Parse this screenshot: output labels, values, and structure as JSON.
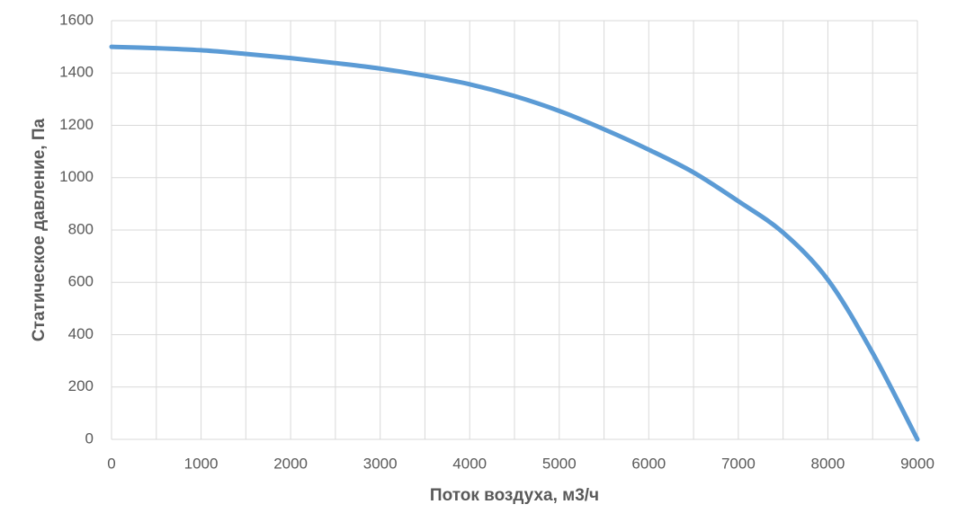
{
  "chart_data": {
    "type": "line",
    "x_label": "Поток воздуха, м3/ч",
    "y_label": "Статическое давление, Па",
    "x": [
      0,
      500,
      1000,
      1500,
      2000,
      2500,
      3000,
      3500,
      4000,
      4500,
      5000,
      5500,
      6000,
      6500,
      7000,
      7500,
      8000,
      8500,
      9000
    ],
    "series": [
      {
        "name": "Статическое давление",
        "color": "#5b9bd5",
        "values": [
          1500,
          1495,
          1487,
          1473,
          1457,
          1438,
          1417,
          1390,
          1357,
          1312,
          1255,
          1185,
          1107,
          1020,
          910,
          790,
          610,
          330,
          0
        ]
      }
    ],
    "xlim": [
      0,
      9000
    ],
    "xticks": [
      0,
      1000,
      2000,
      3000,
      4000,
      5000,
      6000,
      7000,
      8000,
      9000
    ],
    "xminorticks": [
      500,
      1500,
      2500,
      3500,
      4500,
      5500,
      6500,
      7500,
      8500
    ],
    "ylim": [
      0,
      1600
    ],
    "yticks": [
      0,
      200,
      400,
      600,
      800,
      1000,
      1200,
      1400,
      1600
    ],
    "grid": true
  }
}
